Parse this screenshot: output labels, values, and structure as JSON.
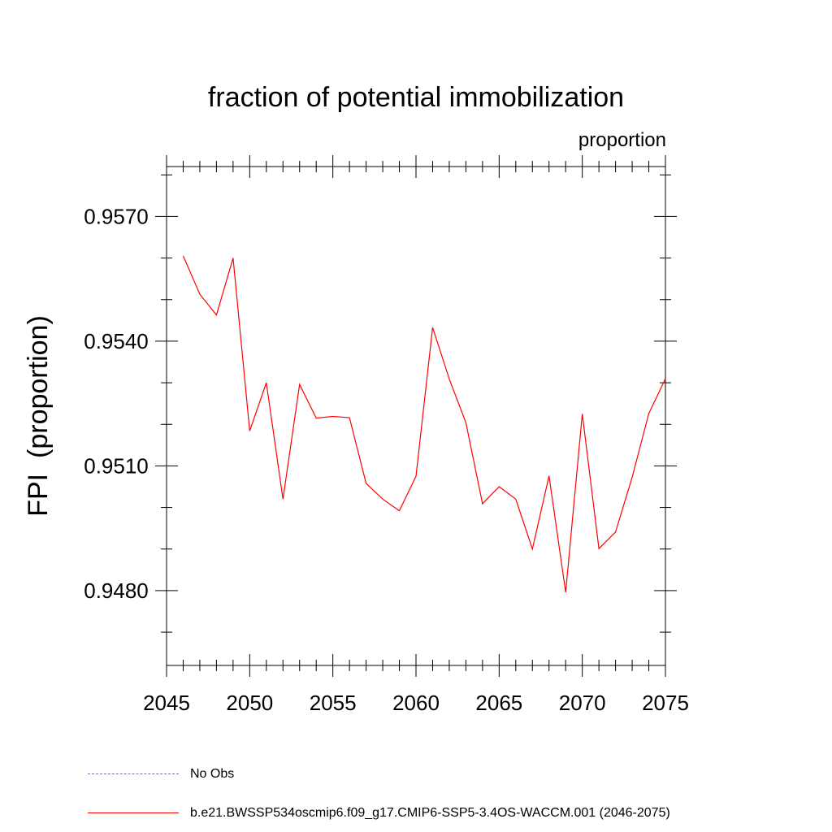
{
  "chart_data": {
    "type": "line",
    "title": "fraction of potential immobilization",
    "subtitle_right": "proportion",
    "ylabel": "FPI  (proportion)",
    "xlabel": "",
    "xlim": [
      2045,
      2075
    ],
    "ylim": [
      0.9462,
      0.9582
    ],
    "x_major_ticks": [
      2045,
      2050,
      2055,
      2060,
      2065,
      2070,
      2075
    ],
    "x_minor_step": 1,
    "y_major_ticks": [
      0.948,
      0.951,
      0.954,
      0.957
    ],
    "y_tick_labels": [
      "0.9480",
      "0.9510",
      "0.9540",
      "0.9570"
    ],
    "y_minor_step": 0.001,
    "grid": false,
    "legend_position": "bottom-left",
    "series": [
      {
        "name": "b.e21.BWSSP534oscmip6.f09_g17.CMIP6-SSP5-3.4OS-WACCM.001 (2046-2075)",
        "color": "#ff0000",
        "style": "solid",
        "x": [
          2046,
          2047,
          2048,
          2049,
          2050,
          2051,
          2052,
          2053,
          2054,
          2055,
          2056,
          2057,
          2058,
          2059,
          2060,
          2061,
          2062,
          2063,
          2064,
          2065,
          2066,
          2067,
          2068,
          2069,
          2070,
          2071,
          2072,
          2073,
          2074,
          2075
        ],
        "values": [
          0.95605,
          0.95513,
          0.95463,
          0.956,
          0.95184,
          0.953,
          0.9502,
          0.95296,
          0.95215,
          0.95219,
          0.95216,
          0.95058,
          0.9502,
          0.94992,
          0.95075,
          0.95433,
          0.95309,
          0.95204,
          0.95009,
          0.9505,
          0.9502,
          0.949,
          0.95076,
          0.94796,
          0.95225,
          0.94901,
          0.94941,
          0.95073,
          0.95226,
          0.9531
        ]
      },
      {
        "name": "No Obs",
        "color": "#7a6bb0",
        "style": "dashed",
        "x": [],
        "values": []
      }
    ]
  }
}
